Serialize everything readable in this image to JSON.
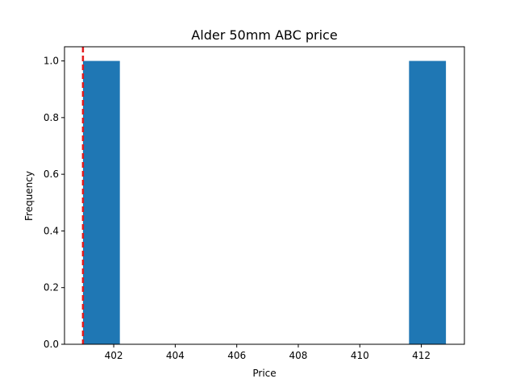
{
  "chart_data": {
    "type": "bar",
    "title": "Alder 50mm ABC price",
    "xlabel": "Price",
    "ylabel": "Frequency",
    "xlim": [
      400.4,
      413.4
    ],
    "ylim": [
      0,
      1.05
    ],
    "x_ticks": [
      402,
      404,
      406,
      408,
      410,
      412
    ],
    "y_ticks": [
      0.0,
      0.2,
      0.4,
      0.6,
      0.8,
      1.0
    ],
    "bins": [
      {
        "x0": 401.0,
        "x1": 402.2,
        "value": 1
      },
      {
        "x0": 402.2,
        "x1": 403.4,
        "value": 0
      },
      {
        "x0": 403.4,
        "x1": 404.6,
        "value": 0
      },
      {
        "x0": 404.6,
        "x1": 405.8,
        "value": 0
      },
      {
        "x0": 405.8,
        "x1": 407.0,
        "value": 0
      },
      {
        "x0": 407.0,
        "x1": 408.2,
        "value": 0
      },
      {
        "x0": 408.2,
        "x1": 409.4,
        "value": 0
      },
      {
        "x0": 409.4,
        "x1": 410.6,
        "value": 0
      },
      {
        "x0": 410.6,
        "x1": 411.6,
        "value": 0
      },
      {
        "x0": 411.6,
        "x1": 412.8,
        "value": 1
      }
    ],
    "reference_line": {
      "x": 401.0,
      "style": "dashed",
      "color": "#e31a1c"
    },
    "bar_color": "#1f77b4",
    "grid": false,
    "legend": "none"
  }
}
